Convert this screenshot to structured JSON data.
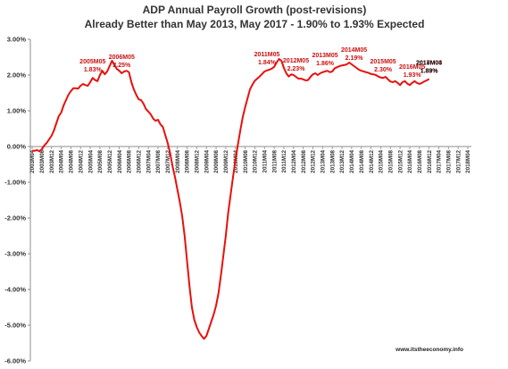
{
  "chart_data": {
    "type": "line",
    "title": "ADP Annual Payroll Growth (post-revisions)",
    "subtitle": "Already Better than May 2013, May 2017 - 1.90%  to 1.93% Expected",
    "ylim": [
      -6.0,
      3.0
    ],
    "yticks": [
      "3.00%",
      "2.00%",
      "1.00%",
      "0.00%",
      "-1.00%",
      "-2.00%",
      "-3.00%",
      "-4.00%",
      "-5.00%",
      "-6.00%"
    ],
    "ytick_values": [
      3,
      2,
      1,
      0,
      -1,
      -2,
      -3,
      -4,
      -5,
      -6
    ],
    "grid": false,
    "xticks": [
      "2003M04",
      "2003M08",
      "2003M12",
      "2004M04",
      "2004M08",
      "2004M12",
      "2005M04",
      "2005M08",
      "2005M12",
      "2006M04",
      "2006M08",
      "2006M12",
      "2007M04",
      "2007M08",
      "2007M12",
      "2008M04",
      "2008M08",
      "2008M12",
      "2009M04",
      "2009M08",
      "2009M12",
      "2010M04",
      "2010M08",
      "2010M12",
      "2011M04",
      "2011M08",
      "2011M12",
      "2012M04",
      "2012M08",
      "2012M12",
      "2013M04",
      "2013M08",
      "2013M12",
      "2014M04",
      "2014M08",
      "2014M12",
      "2015M04",
      "2015M08",
      "2015M12",
      "2016M04",
      "2016M08",
      "2016M12",
      "2017M04",
      "2017M08",
      "2017M12",
      "2018M04"
    ],
    "series": [
      {
        "color": "#e8100c",
        "x_start": "2003M04",
        "values": [
          -0.12,
          -0.12,
          -0.1,
          -0.13,
          -0.08,
          0.03,
          0.1,
          0.2,
          0.3,
          0.45,
          0.65,
          0.85,
          0.95,
          1.15,
          1.3,
          1.45,
          1.55,
          1.63,
          1.63,
          1.62,
          1.7,
          1.75,
          1.72,
          1.7,
          1.8,
          1.92,
          1.86,
          1.83,
          2.0,
          2.12,
          2.02,
          2.1,
          2.25,
          2.4,
          2.28,
          2.17,
          2.12,
          2.05,
          2.1,
          2.12,
          2.08,
          1.8,
          1.6,
          1.45,
          1.32,
          1.3,
          1.2,
          1.05,
          0.98,
          0.9,
          0.78,
          0.72,
          0.75,
          0.62,
          0.55,
          0.32,
          0.1,
          -0.18,
          -0.55,
          -0.85,
          -1.2,
          -1.55,
          -1.95,
          -2.5,
          -3.2,
          -3.9,
          -4.5,
          -4.85,
          -5.05,
          -5.2,
          -5.3,
          -5.38,
          -5.3,
          -5.1,
          -4.9,
          -4.7,
          -4.45,
          -4.1,
          -3.6,
          -3.05,
          -2.5,
          -1.85,
          -1.35,
          -0.85,
          -0.38,
          0.05,
          0.45,
          0.82,
          1.1,
          1.35,
          1.6,
          1.73,
          1.84,
          1.9,
          1.96,
          2.03,
          2.1,
          2.13,
          2.15,
          2.18,
          2.23,
          2.35,
          2.45,
          2.4,
          2.2,
          2.05,
          1.96,
          2.02,
          2.0,
          1.95,
          1.9,
          1.9,
          1.88,
          1.85,
          1.86,
          1.95,
          2.02,
          2.05,
          2.0,
          2.05,
          2.08,
          2.1,
          2.12,
          2.08,
          2.1,
          2.19,
          2.22,
          2.25,
          2.27,
          2.28,
          2.3,
          2.35,
          2.3,
          2.25,
          2.2,
          2.15,
          2.12,
          2.1,
          2.08,
          2.06,
          2.03,
          2.02,
          2.0,
          1.96,
          1.93,
          1.92,
          1.95,
          1.88,
          1.82,
          1.8,
          1.83,
          1.78,
          1.72,
          1.8,
          1.83,
          1.76,
          1.72,
          1.78,
          1.83,
          1.78,
          1.75,
          1.78,
          1.82,
          1.85,
          1.89
        ]
      }
    ],
    "annotations": [
      {
        "x": "2005M05",
        "text": "2005M05",
        "value": "1.83%",
        "color": "#cc1010"
      },
      {
        "x": "2006M05",
        "text": "2006M05",
        "value": "2.25%",
        "color": "#cc1010"
      },
      {
        "x": "2011M05",
        "text": "2011M05",
        "value": "1.84%",
        "color": "#cc1010"
      },
      {
        "x": "2012M05",
        "text": "2012M05",
        "value": "2.23%",
        "color": "#cc1010"
      },
      {
        "x": "2013M05",
        "text": "2013M05",
        "value": "1.86%",
        "color": "#cc1010"
      },
      {
        "x": "2014M05",
        "text": "2014M05",
        "value": "2.19%",
        "color": "#cc1010"
      },
      {
        "x": "2015M05",
        "text": "2015M05",
        "value": "2.30%",
        "color": "#cc1010"
      },
      {
        "x": "2016M05",
        "text": "2016M05",
        "value": "1.93%",
        "color": "#cc1010"
      },
      {
        "x": "2017M05",
        "text": "2017M05",
        "value": "1.83%",
        "color": "#cc1010"
      },
      {
        "x": "2018M04",
        "text": "2018M04",
        "value": "1.89%",
        "color": "#111111"
      }
    ],
    "source": "www.itstheeconomy.info"
  }
}
